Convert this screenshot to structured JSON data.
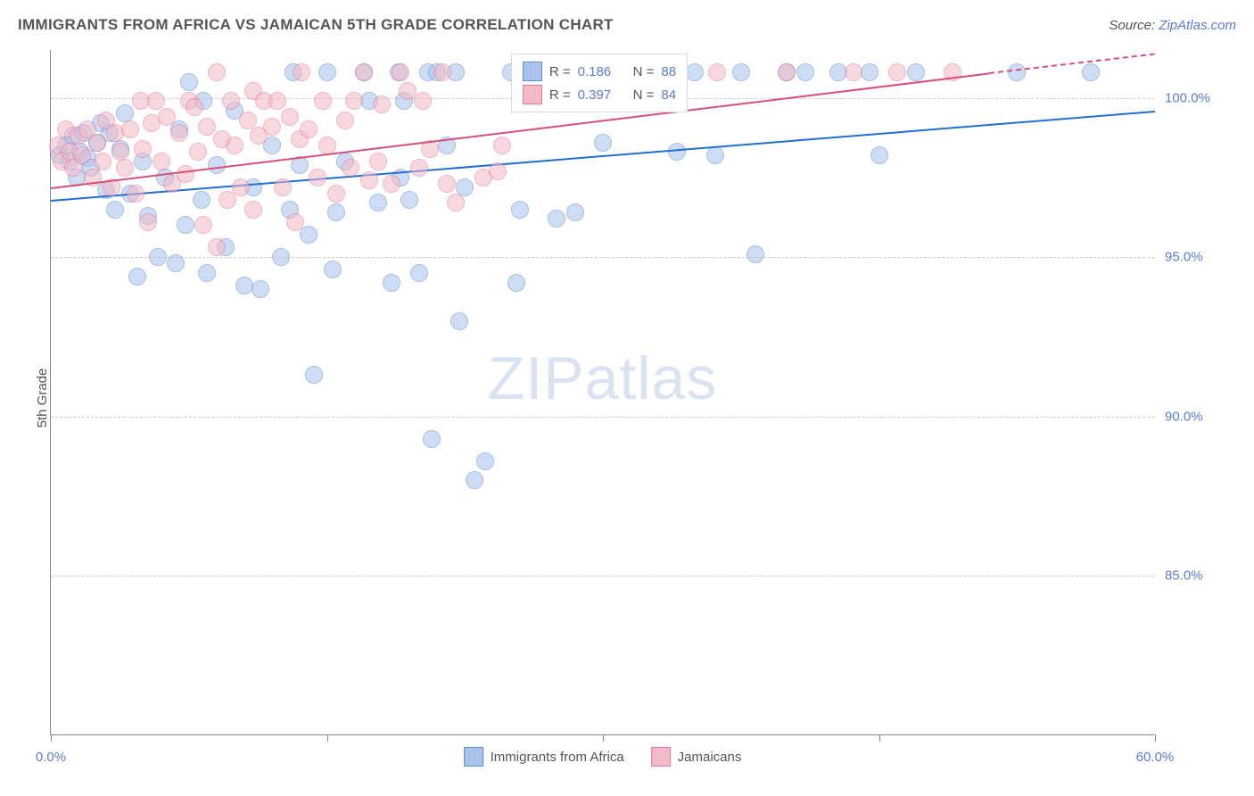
{
  "header": {
    "title": "IMMIGRANTS FROM AFRICA VS JAMAICAN 5TH GRADE CORRELATION CHART",
    "source_prefix": "Source: ",
    "source_link": "ZipAtlas.com"
  },
  "ylabel": "5th Grade",
  "watermark": {
    "part1": "ZIP",
    "part2": "atlas"
  },
  "chart": {
    "type": "scatter",
    "xlim": [
      0,
      60
    ],
    "ylim": [
      80,
      101.5
    ],
    "yticks": [
      85,
      90,
      95,
      100
    ],
    "ytick_labels": [
      "85.0%",
      "90.0%",
      "95.0%",
      "100.0%"
    ],
    "xticks": [
      0,
      15,
      30,
      45,
      60
    ],
    "xtick_labels": {
      "0": "0.0%",
      "60": "60.0%"
    },
    "grid_color": "#cccccc",
    "background_color": "#ffffff",
    "marker_radius": 10,
    "marker_opacity": 0.55,
    "series": [
      {
        "name": "Immigrants from Africa",
        "color_fill": "#a9c3ec",
        "color_stroke": "#5b8ed6",
        "line_color": "#1f6fd4",
        "R": "0.186",
        "N": "88",
        "trend": {
          "x1": 0,
          "y1": 96.8,
          "x2": 60,
          "y2": 99.6
        },
        "points": [
          [
            0.5,
            98.2
          ],
          [
            0.8,
            98.5
          ],
          [
            1.0,
            98.0
          ],
          [
            1.2,
            98.8
          ],
          [
            1.4,
            97.5
          ],
          [
            1.6,
            98.3
          ],
          [
            1.8,
            98.9
          ],
          [
            2.0,
            98.1
          ],
          [
            2.2,
            97.8
          ],
          [
            2.5,
            98.6
          ],
          [
            2.7,
            99.2
          ],
          [
            3.0,
            97.1
          ],
          [
            3.2,
            98.9
          ],
          [
            3.5,
            96.5
          ],
          [
            3.8,
            98.4
          ],
          [
            4.0,
            99.5
          ],
          [
            4.3,
            97.0
          ],
          [
            4.7,
            94.4
          ],
          [
            5.0,
            98.0
          ],
          [
            5.3,
            96.3
          ],
          [
            5.8,
            95.0
          ],
          [
            6.2,
            97.5
          ],
          [
            6.8,
            94.8
          ],
          [
            7.0,
            99.0
          ],
          [
            7.3,
            96.0
          ],
          [
            7.5,
            100.5
          ],
          [
            8.2,
            96.8
          ],
          [
            8.3,
            99.9
          ],
          [
            8.5,
            94.5
          ],
          [
            9.0,
            97.9
          ],
          [
            9.5,
            95.3
          ],
          [
            10.0,
            99.6
          ],
          [
            10.5,
            94.1
          ],
          [
            11.0,
            97.2
          ],
          [
            11.4,
            94.0
          ],
          [
            12.0,
            98.5
          ],
          [
            12.5,
            95.0
          ],
          [
            13.0,
            96.5
          ],
          [
            13.2,
            100.8
          ],
          [
            13.5,
            97.9
          ],
          [
            14.0,
            95.7
          ],
          [
            14.3,
            91.3
          ],
          [
            15.0,
            100.8
          ],
          [
            15.3,
            94.6
          ],
          [
            15.5,
            96.4
          ],
          [
            16.0,
            98.0
          ],
          [
            17.0,
            100.8
          ],
          [
            17.3,
            99.9
          ],
          [
            17.8,
            96.7
          ],
          [
            18.5,
            94.2
          ],
          [
            18.9,
            100.8
          ],
          [
            19.0,
            97.5
          ],
          [
            19.2,
            99.9
          ],
          [
            19.5,
            96.8
          ],
          [
            20.0,
            94.5
          ],
          [
            20.5,
            100.8
          ],
          [
            20.7,
            89.3
          ],
          [
            21.0,
            100.8
          ],
          [
            21.5,
            98.5
          ],
          [
            22.0,
            100.8
          ],
          [
            22.2,
            93.0
          ],
          [
            22.5,
            97.2
          ],
          [
            23.0,
            88.0
          ],
          [
            23.6,
            88.6
          ],
          [
            25.0,
            100.8
          ],
          [
            25.3,
            94.2
          ],
          [
            25.5,
            96.5
          ],
          [
            26.5,
            100.8
          ],
          [
            27.5,
            96.2
          ],
          [
            28.0,
            100.8
          ],
          [
            28.5,
            96.4
          ],
          [
            29.5,
            100.8
          ],
          [
            30.0,
            98.6
          ],
          [
            31.0,
            100.8
          ],
          [
            32.5,
            100.8
          ],
          [
            34.0,
            98.3
          ],
          [
            35.0,
            100.8
          ],
          [
            36.1,
            98.2
          ],
          [
            37.5,
            100.8
          ],
          [
            38.3,
            95.1
          ],
          [
            40.0,
            100.8
          ],
          [
            41.0,
            100.8
          ],
          [
            42.8,
            100.8
          ],
          [
            44.5,
            100.8
          ],
          [
            45.0,
            98.2
          ],
          [
            47.0,
            100.8
          ],
          [
            52.5,
            100.8
          ],
          [
            56.5,
            100.8
          ]
        ]
      },
      {
        "name": "Jamaicans",
        "color_fill": "#f2b9c6",
        "color_stroke": "#e678a0",
        "line_color": "#d94f78",
        "R": "0.397",
        "N": "84",
        "trend": {
          "x1": 0,
          "y1": 97.2,
          "x2": 51,
          "y2": 100.8
        },
        "trend_dash": {
          "x1": 51,
          "y1": 100.8,
          "x2": 60,
          "y2": 101.4
        },
        "points": [
          [
            0.4,
            98.5
          ],
          [
            0.6,
            98.0
          ],
          [
            0.8,
            99.0
          ],
          [
            1.0,
            98.3
          ],
          [
            1.2,
            97.8
          ],
          [
            1.5,
            98.8
          ],
          [
            1.7,
            98.2
          ],
          [
            2.0,
            99.0
          ],
          [
            2.3,
            97.5
          ],
          [
            2.5,
            98.6
          ],
          [
            2.8,
            98.0
          ],
          [
            3.0,
            99.3
          ],
          [
            3.3,
            97.2
          ],
          [
            3.5,
            98.9
          ],
          [
            3.8,
            98.3
          ],
          [
            4.0,
            97.8
          ],
          [
            4.3,
            99.0
          ],
          [
            4.6,
            97.0
          ],
          [
            4.9,
            99.9
          ],
          [
            5.0,
            98.4
          ],
          [
            5.3,
            96.1
          ],
          [
            5.5,
            99.2
          ],
          [
            5.7,
            99.9
          ],
          [
            6.0,
            98.0
          ],
          [
            6.3,
            99.4
          ],
          [
            6.6,
            97.3
          ],
          [
            7.0,
            98.9
          ],
          [
            7.3,
            97.6
          ],
          [
            7.5,
            99.9
          ],
          [
            7.8,
            99.7
          ],
          [
            8.0,
            98.3
          ],
          [
            8.3,
            96.0
          ],
          [
            8.5,
            99.1
          ],
          [
            9.0,
            95.3
          ],
          [
            9.0,
            100.8
          ],
          [
            9.3,
            98.7
          ],
          [
            9.6,
            96.8
          ],
          [
            9.8,
            99.9
          ],
          [
            10.0,
            98.5
          ],
          [
            10.3,
            97.2
          ],
          [
            10.7,
            99.3
          ],
          [
            11.0,
            96.5
          ],
          [
            11.0,
            100.2
          ],
          [
            11.3,
            98.8
          ],
          [
            11.6,
            99.9
          ],
          [
            12.0,
            99.1
          ],
          [
            12.3,
            99.9
          ],
          [
            12.6,
            97.2
          ],
          [
            13.0,
            99.4
          ],
          [
            13.3,
            96.1
          ],
          [
            13.5,
            98.7
          ],
          [
            13.6,
            100.8
          ],
          [
            14.0,
            99.0
          ],
          [
            14.5,
            97.5
          ],
          [
            14.8,
            99.9
          ],
          [
            15.0,
            98.5
          ],
          [
            15.5,
            97.0
          ],
          [
            16.0,
            99.3
          ],
          [
            16.3,
            97.8
          ],
          [
            16.5,
            99.9
          ],
          [
            17.0,
            100.8
          ],
          [
            17.3,
            97.4
          ],
          [
            17.8,
            98.0
          ],
          [
            18.0,
            99.8
          ],
          [
            18.5,
            97.3
          ],
          [
            19.0,
            100.8
          ],
          [
            19.4,
            100.2
          ],
          [
            20.0,
            97.8
          ],
          [
            20.2,
            99.9
          ],
          [
            20.6,
            98.4
          ],
          [
            21.3,
            100.8
          ],
          [
            21.5,
            97.3
          ],
          [
            22.0,
            96.7
          ],
          [
            23.5,
            97.5
          ],
          [
            24.3,
            97.7
          ],
          [
            24.5,
            98.5
          ],
          [
            26.0,
            100.8
          ],
          [
            28.5,
            99.9
          ],
          [
            30.5,
            100.8
          ],
          [
            36.2,
            100.8
          ],
          [
            40.0,
            100.8
          ],
          [
            43.6,
            100.8
          ],
          [
            46.0,
            100.8
          ],
          [
            49.0,
            100.8
          ]
        ]
      }
    ]
  },
  "top_legend": {
    "rows": [
      {
        "swatch_fill": "#a9c3ec",
        "swatch_border": "#5b8ed6",
        "r_label": "R =",
        "r_val": "0.186",
        "n_label": "N =",
        "n_val": "88"
      },
      {
        "swatch_fill": "#f2b9c6",
        "swatch_border": "#e678a0",
        "r_label": "R =",
        "r_val": "0.397",
        "n_label": "N =",
        "n_val": "84"
      }
    ]
  },
  "bottom_legend": [
    {
      "swatch_fill": "#a9c3ec",
      "swatch_border": "#5b8ed6",
      "label": "Immigrants from Africa"
    },
    {
      "swatch_fill": "#f2b9c6",
      "swatch_border": "#e678a0",
      "label": "Jamaicans"
    }
  ]
}
